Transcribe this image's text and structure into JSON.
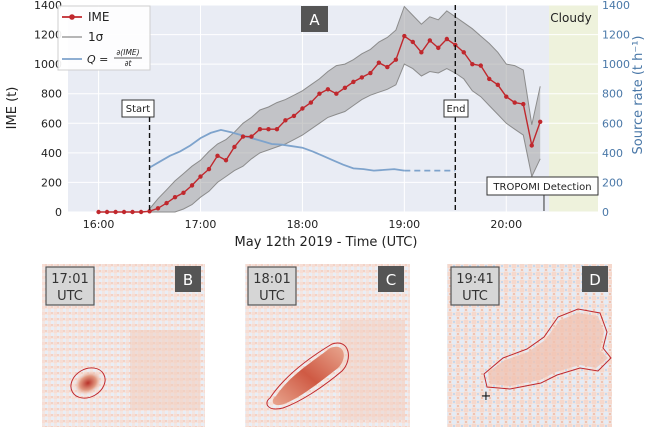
{
  "chart_data": {
    "type": "line",
    "panel_label": "A",
    "xlabel": "May 12th 2019 - Time (UTC)",
    "ylabel": "IME (t)",
    "ylabel_right": "Source rate (t h⁻¹)",
    "x_range_hours": [
      15.7,
      20.9
    ],
    "ylim": [
      0,
      1400
    ],
    "ylim_right": [
      0,
      1400
    ],
    "x_tick_labels": [
      "16:00",
      "17:00",
      "18:00",
      "19:00",
      "20:00"
    ],
    "x_tick_hours": [
      16,
      17,
      18,
      19,
      20
    ],
    "y_ticks": [
      0,
      200,
      400,
      600,
      800,
      1000,
      1200,
      1400
    ],
    "y_ticks_right": [
      0,
      200,
      400,
      600,
      800,
      1000,
      1200,
      1400
    ],
    "grid": true,
    "legend_placement": "top-left",
    "legend": {
      "ime": "IME",
      "sigma": "1σ",
      "q_prefix": "Q =",
      "q_num": "∂(IME)",
      "q_den": "∂t"
    },
    "annotations": {
      "start": "Start",
      "end": "End",
      "cloudy": "Cloudy",
      "tropomi": "TROPOMI Detection"
    },
    "start_hour": 16.5,
    "end_hour": 19.5,
    "tropomi_hour": 20.37,
    "cloudy_from_hour": 20.42,
    "series": [
      {
        "name": "IME",
        "color": "#c0282d",
        "x": [
          16.0,
          16.083,
          16.167,
          16.25,
          16.333,
          16.417,
          16.5,
          16.583,
          16.667,
          16.75,
          16.833,
          16.917,
          17.0,
          17.083,
          17.167,
          17.25,
          17.333,
          17.417,
          17.5,
          17.583,
          17.667,
          17.75,
          17.833,
          17.917,
          18.0,
          18.083,
          18.167,
          18.25,
          18.333,
          18.417,
          18.5,
          18.583,
          18.667,
          18.75,
          18.833,
          18.917,
          19.0,
          19.083,
          19.167,
          19.25,
          19.333,
          19.417,
          19.5,
          19.583,
          19.667,
          19.75,
          19.833,
          19.917,
          20.0,
          20.083,
          20.167,
          20.25,
          20.333
        ],
        "y": [
          0,
          0,
          0,
          0,
          0,
          0,
          5,
          25,
          60,
          100,
          130,
          180,
          240,
          290,
          380,
          350,
          440,
          510,
          510,
          560,
          560,
          560,
          620,
          650,
          700,
          740,
          800,
          830,
          800,
          840,
          880,
          910,
          940,
          1010,
          980,
          1030,
          1190,
          1150,
          1080,
          1160,
          1110,
          1170,
          1130,
          1080,
          1000,
          990,
          900,
          860,
          780,
          740,
          730,
          450,
          610
        ]
      },
      {
        "name": "1σ",
        "color": "#8c8c8c",
        "x": [
          16.5,
          16.583,
          16.667,
          16.75,
          16.833,
          16.917,
          17.0,
          17.083,
          17.167,
          17.25,
          17.333,
          17.417,
          17.5,
          17.583,
          17.667,
          17.75,
          17.833,
          17.917,
          18.0,
          18.083,
          18.167,
          18.25,
          18.333,
          18.417,
          18.5,
          18.583,
          18.667,
          18.75,
          18.833,
          18.917,
          19.0,
          19.083,
          19.167,
          19.25,
          19.333,
          19.417,
          19.5,
          19.583,
          19.667,
          19.75,
          19.833,
          19.917,
          20.0,
          20.083,
          20.167,
          20.25,
          20.333
        ],
        "upper": [
          20,
          90,
          150,
          210,
          260,
          310,
          350,
          410,
          460,
          490,
          540,
          600,
          640,
          690,
          710,
          740,
          760,
          790,
          820,
          860,
          900,
          950,
          990,
          1000,
          1030,
          1070,
          1100,
          1150,
          1180,
          1230,
          1390,
          1330,
          1270,
          1320,
          1300,
          1360,
          1320,
          1280,
          1240,
          1190,
          1140,
          1080,
          1000,
          990,
          960,
          590,
          850
        ],
        "lower": [
          0,
          0,
          0,
          0,
          20,
          50,
          100,
          140,
          200,
          240,
          280,
          310,
          360,
          400,
          420,
          440,
          460,
          490,
          520,
          560,
          600,
          640,
          660,
          680,
          720,
          760,
          790,
          810,
          830,
          860,
          1000,
          970,
          920,
          950,
          940,
          970,
          940,
          900,
          820,
          780,
          720,
          660,
          600,
          560,
          520,
          240,
          360
        ]
      },
      {
        "name": "Q",
        "color": "#7ea3cc",
        "axis": "right",
        "x": [
          16.5,
          16.6,
          16.7,
          16.8,
          16.9,
          17.0,
          17.1,
          17.2,
          17.3,
          17.4,
          17.5,
          17.6,
          17.7,
          17.8,
          17.9,
          18.0,
          18.1,
          18.2,
          18.3,
          18.4,
          18.5,
          18.6,
          18.7,
          18.8,
          18.9,
          19.0
        ],
        "y": [
          300,
          340,
          380,
          410,
          450,
          500,
          535,
          555,
          540,
          520,
          500,
          480,
          460,
          455,
          445,
          435,
          410,
          380,
          350,
          320,
          295,
          290,
          280,
          285,
          290,
          280
        ]
      },
      {
        "name": "Q (extrapolated)",
        "color": "#7ea3cc",
        "axis": "right",
        "dashed": true,
        "x": [
          19.0,
          19.25,
          19.5
        ],
        "y": [
          280,
          280,
          280
        ]
      }
    ]
  },
  "panels": [
    {
      "letter": "B",
      "time": "17:01",
      "tz": "UTC"
    },
    {
      "letter": "C",
      "time": "18:01",
      "tz": "UTC"
    },
    {
      "letter": "D",
      "time": "19:41",
      "tz": "UTC"
    }
  ]
}
